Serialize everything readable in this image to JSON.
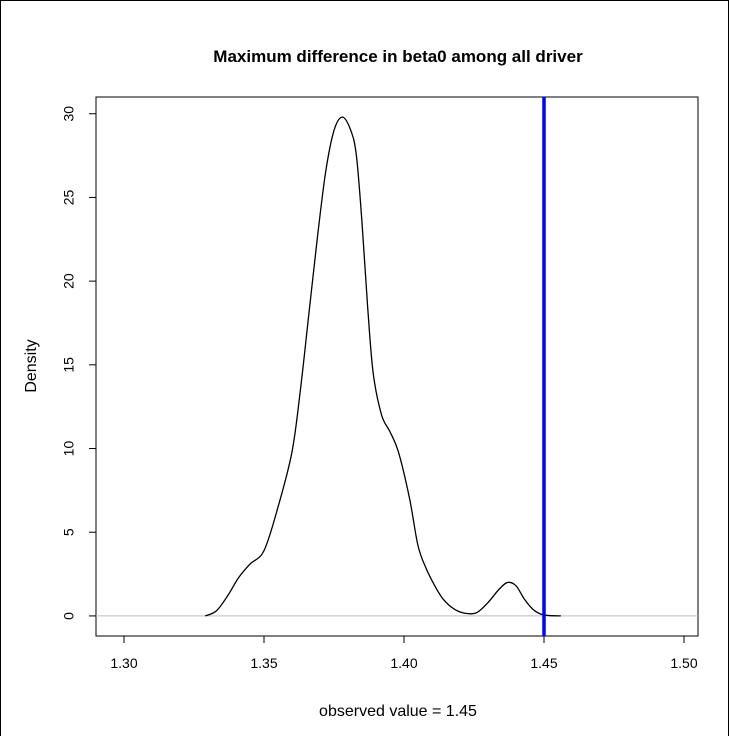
{
  "chart_data": {
    "type": "line",
    "title": "Maximum difference in beta0 among all driver",
    "xlabel": "observed value = 1.45",
    "ylabel": "Density",
    "xlim": [
      1.29,
      1.505
    ],
    "ylim": [
      -1.2,
      31.0
    ],
    "x_ticks": [
      1.3,
      1.35,
      1.4,
      1.45,
      1.5
    ],
    "x_tick_labels": [
      "1.30",
      "1.35",
      "1.40",
      "1.45",
      "1.50"
    ],
    "y_ticks": [
      0,
      5,
      10,
      15,
      20,
      25,
      30
    ],
    "y_tick_labels": [
      "0",
      "5",
      "10",
      "15",
      "20",
      "25",
      "30"
    ],
    "grid": false,
    "legend": "none",
    "series": [
      {
        "x": [
          1.329,
          1.333,
          1.337,
          1.341,
          1.345,
          1.35,
          1.355,
          1.36,
          1.363,
          1.366,
          1.369,
          1.372,
          1.375,
          1.378,
          1.381,
          1.383,
          1.385,
          1.387,
          1.389,
          1.392,
          1.395,
          1.398,
          1.402,
          1.405,
          1.408,
          1.411,
          1.414,
          1.418,
          1.422,
          1.426,
          1.43,
          1.434,
          1.437,
          1.44,
          1.443,
          1.446,
          1.449,
          1.452,
          1.456
        ],
        "y": [
          0.0,
          0.3,
          1.2,
          2.3,
          3.1,
          3.9,
          6.5,
          9.8,
          13.5,
          18.0,
          22.5,
          26.5,
          29.0,
          29.8,
          29.0,
          27.5,
          23.5,
          18.5,
          14.5,
          12.0,
          11.0,
          9.8,
          7.0,
          4.2,
          2.8,
          1.8,
          1.0,
          0.4,
          0.15,
          0.2,
          0.8,
          1.6,
          2.0,
          1.8,
          1.0,
          0.4,
          0.1,
          0.02,
          0.0
        ]
      }
    ],
    "observed_value": 1.45,
    "observed_line_color": "#0000ff",
    "zero_line_color": "#bebebe",
    "curve_color": "#000000"
  }
}
